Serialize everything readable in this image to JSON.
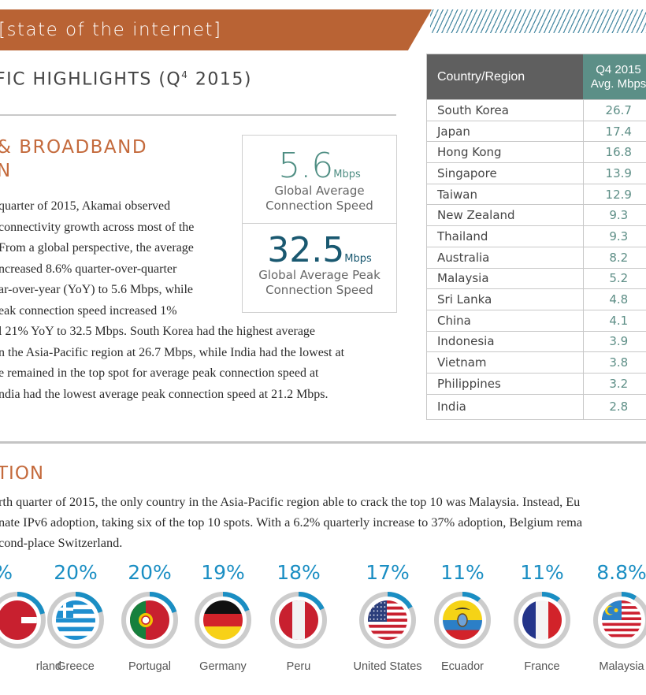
{
  "header": {
    "banner_text": "[state of the internet]",
    "section_title": "FIC HIGHLIGHTS (Q",
    "section_title_sup": "4",
    "section_title_end": " 2015)"
  },
  "speed_section": {
    "heading_line1": " & BROADBAND",
    "heading_line2": "N",
    "paragraph_lines": [
      "quarter of 2015, Akamai observed",
      "connectivity growth across most of the",
      " From a global perspective, the average",
      "ncreased 8.6% quarter-over-quarter",
      "ar-over-year (YoY) to 5.6 Mbps, while",
      "eak connection speed increased 1%",
      "l 21% YoY to 32.5 Mbps. South Korea had the highest average",
      "n the Asia-Pacific region at 26.7 Mbps, while India had the lowest at",
      "e remained in the top spot for average peak connection speed at",
      "ndia had the lowest average peak connection speed at 21.2 Mbps."
    ],
    "stats": [
      {
        "value": "5.6",
        "unit": "Mbps",
        "caption_line1": "Global Average",
        "caption_line2": "Connection Speed"
      },
      {
        "value": "32.5",
        "unit": "Mbps",
        "caption_line1": "Global Average Peak",
        "caption_line2": "Connection Speed"
      }
    ]
  },
  "speed_table": {
    "col1_header": "Country/Region",
    "col2_header_line1": "Q4 2015",
    "col2_header_line2": "Avg. Mbps",
    "rows": [
      {
        "country": "South Korea",
        "mbps": "26.7"
      },
      {
        "country": "Japan",
        "mbps": "17.4"
      },
      {
        "country": "Hong Kong",
        "mbps": "16.8"
      },
      {
        "country": "Singapore",
        "mbps": "13.9"
      },
      {
        "country": "Taiwan",
        "mbps": "12.9"
      },
      {
        "country": "New Zealand",
        "mbps": "9.3"
      },
      {
        "country": "Thailand",
        "mbps": "9.3"
      },
      {
        "country": "Australia",
        "mbps": "8.2"
      },
      {
        "country": "Malaysia",
        "mbps": "5.2"
      },
      {
        "country": "Sri Lanka",
        "mbps": "4.8"
      },
      {
        "country": "China",
        "mbps": "4.1"
      },
      {
        "country": "Indonesia",
        "mbps": "3.9"
      },
      {
        "country": "Vietnam",
        "mbps": "3.8"
      },
      {
        "country": "Philippines",
        "mbps": "3.2"
      },
      {
        "country": "India",
        "mbps": "2.8"
      }
    ]
  },
  "ipv6_section": {
    "heading": "TION",
    "paragraph_lines": [
      "rth quarter of 2015, the only country in the Asia-Pacific region able to crack the top 10 was Malaysia. Instead, Eu",
      "nate IPv6 adoption, taking six of the top 10 spots. With a 6.2% quarterly increase to 37% adoption, Belgium rema",
      "cond-place Switzerland."
    ],
    "countries": [
      {
        "name": "rland",
        "pct_label": "%",
        "pct": 21,
        "flag": "switzerland-flag"
      },
      {
        "name": "Greece",
        "pct_label": "20%",
        "pct": 20,
        "flag": "greece-flag"
      },
      {
        "name": "Portugal",
        "pct_label": "20%",
        "pct": 20,
        "flag": "portugal-flag"
      },
      {
        "name": "Germany",
        "pct_label": "19%",
        "pct": 19,
        "flag": "germany-flag"
      },
      {
        "name": "Peru",
        "pct_label": "18%",
        "pct": 18,
        "flag": "peru-flag"
      },
      {
        "name": "United States",
        "pct_label": "17%",
        "pct": 17,
        "flag": "usa-flag"
      },
      {
        "name": "Ecuador",
        "pct_label": "11%",
        "pct": 11,
        "flag": "ecuador-flag"
      },
      {
        "name": "France",
        "pct_label": "11%",
        "pct": 11,
        "flag": "france-flag"
      },
      {
        "name": "Malaysia",
        "pct_label": "8.8%",
        "pct": 8.8,
        "flag": "malaysia-flag"
      }
    ]
  },
  "colors": {
    "banner": "#b96334",
    "heading_accent": "#c46a3c",
    "teal": "#4f8e83",
    "navy": "#195870",
    "ring_blue": "#1a8ec3",
    "ring_gray": "#cccccc"
  }
}
